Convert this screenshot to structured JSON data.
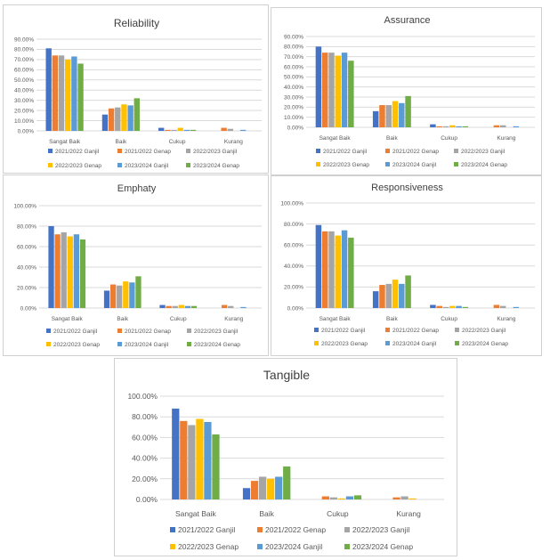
{
  "chart_data": [
    {
      "type": "bar",
      "title": "Reliability",
      "categories": [
        "Sangat Baik",
        "Baik",
        "Cukup",
        "Kurang"
      ],
      "ylim": [
        0,
        90
      ],
      "yticks": [
        "0.00%",
        "10.00%",
        "20.00%",
        "30.00%",
        "40.00%",
        "50.00%",
        "60.00%",
        "70.00%",
        "80.00%",
        "90.00%"
      ],
      "grid": true,
      "legend_position": "bottom",
      "series": [
        {
          "name": "2021/2022 Ganjil",
          "color": "#4472c4",
          "values": [
            81,
            16,
            3,
            0
          ]
        },
        {
          "name": "2021/2022 Genap",
          "color": "#ed7d31",
          "values": [
            74,
            22,
            1,
            3
          ]
        },
        {
          "name": "2022/2023 Ganjil",
          "color": "#a5a5a5",
          "values": [
            74,
            23,
            1,
            2
          ]
        },
        {
          "name": "2022/2023 Genap",
          "color": "#ffc000",
          "values": [
            70,
            26,
            3,
            0
          ]
        },
        {
          "name": "2023/2024 Ganjil",
          "color": "#5b9bd5",
          "values": [
            73,
            25,
            1,
            1
          ]
        },
        {
          "name": "2023/2024 Genap",
          "color": "#70ad47",
          "values": [
            66,
            32,
            1,
            0
          ]
        }
      ]
    },
    {
      "type": "bar",
      "title": "Assurance",
      "categories": [
        "Sangat Baik",
        "Baik",
        "Cukup",
        "Kurang"
      ],
      "ylim": [
        0,
        90
      ],
      "yticks": [
        "0.00%",
        "10.00%",
        "20.00%",
        "30.00%",
        "40.00%",
        "50.00%",
        "60.00%",
        "70.00%",
        "80.00%",
        "90.00%"
      ],
      "grid": true,
      "legend_position": "bottom",
      "series": [
        {
          "name": "2021/2022 Ganjil",
          "color": "#4472c4",
          "values": [
            80,
            16,
            3,
            0
          ]
        },
        {
          "name": "2021/2022 Genap",
          "color": "#ed7d31",
          "values": [
            74,
            22,
            1,
            2
          ]
        },
        {
          "name": "2022/2023 Ganjil",
          "color": "#a5a5a5",
          "values": [
            74,
            22,
            1,
            2
          ]
        },
        {
          "name": "2022/2023 Genap",
          "color": "#ffc000",
          "values": [
            71,
            26,
            2,
            0
          ]
        },
        {
          "name": "2023/2024 Ganjil",
          "color": "#5b9bd5",
          "values": [
            74,
            24,
            1,
            1
          ]
        },
        {
          "name": "2023/2024 Genap",
          "color": "#70ad47",
          "values": [
            66,
            31,
            1,
            0
          ]
        }
      ]
    },
    {
      "type": "bar",
      "title": "Emphaty",
      "categories": [
        "Sangat Baik",
        "Baik",
        "Cukup",
        "Kurang"
      ],
      "ylim": [
        0,
        100
      ],
      "yticks": [
        "0.00%",
        "20.00%",
        "40.00%",
        "60.00%",
        "80.00%",
        "100.00%"
      ],
      "grid": true,
      "legend_position": "bottom",
      "series": [
        {
          "name": "2021/2022 Ganjil",
          "color": "#4472c4",
          "values": [
            80,
            17,
            3,
            0
          ]
        },
        {
          "name": "2021/2022 Genap",
          "color": "#ed7d31",
          "values": [
            72,
            23,
            2,
            3
          ]
        },
        {
          "name": "2022/2023 Ganjil",
          "color": "#a5a5a5",
          "values": [
            74,
            22,
            2,
            2
          ]
        },
        {
          "name": "2022/2023 Genap",
          "color": "#ffc000",
          "values": [
            70,
            26,
            3,
            0
          ]
        },
        {
          "name": "2023/2024 Ganjil",
          "color": "#5b9bd5",
          "values": [
            72,
            25,
            2,
            1
          ]
        },
        {
          "name": "2023/2024 Genap",
          "color": "#70ad47",
          "values": [
            67,
            31,
            2,
            0
          ]
        }
      ]
    },
    {
      "type": "bar",
      "title": "Responsiveness",
      "categories": [
        "Sangat Baik",
        "Baik",
        "Cukup",
        "Kurang"
      ],
      "ylim": [
        0,
        100
      ],
      "yticks": [
        "0.00%",
        "20.00%",
        "40.00%",
        "60.00%",
        "80.00%",
        "100.00%"
      ],
      "grid": true,
      "legend_position": "bottom",
      "series": [
        {
          "name": "2021/2022 Ganjil",
          "color": "#4472c4",
          "values": [
            79,
            16,
            3,
            0
          ]
        },
        {
          "name": "2021/2022 Genap",
          "color": "#ed7d31",
          "values": [
            73,
            22,
            2,
            3
          ]
        },
        {
          "name": "2022/2023 Ganjil",
          "color": "#a5a5a5",
          "values": [
            73,
            23,
            1,
            2
          ]
        },
        {
          "name": "2022/2023 Genap",
          "color": "#ffc000",
          "values": [
            69,
            27,
            2,
            0
          ]
        },
        {
          "name": "2023/2024 Ganjil",
          "color": "#5b9bd5",
          "values": [
            74,
            23,
            2,
            1
          ]
        },
        {
          "name": "2023/2024 Genap",
          "color": "#70ad47",
          "values": [
            67,
            31,
            1,
            0
          ]
        }
      ]
    },
    {
      "type": "bar",
      "title": "Tangible",
      "categories": [
        "Sangat Baik",
        "Baik",
        "Cukup",
        "Kurang"
      ],
      "ylim": [
        0,
        100
      ],
      "yticks": [
        "0.00%",
        "20.00%",
        "40.00%",
        "60.00%",
        "80.00%",
        "100.00%"
      ],
      "grid": true,
      "legend_position": "bottom",
      "series": [
        {
          "name": "2021/2022 Ganjil",
          "color": "#4472c4",
          "values": [
            88,
            11,
            0,
            0
          ]
        },
        {
          "name": "2021/2022 Genap",
          "color": "#ed7d31",
          "values": [
            76,
            18,
            3,
            2
          ]
        },
        {
          "name": "2022/2023 Ganjil",
          "color": "#a5a5a5",
          "values": [
            72,
            22,
            2,
            3
          ]
        },
        {
          "name": "2022/2023 Genap",
          "color": "#ffc000",
          "values": [
            78,
            20,
            1,
            1
          ]
        },
        {
          "name": "2023/2024 Ganjil",
          "color": "#5b9bd5",
          "values": [
            75,
            22,
            3,
            0
          ]
        },
        {
          "name": "2023/2024 Genap",
          "color": "#70ad47",
          "values": [
            63,
            32,
            4,
            0
          ]
        }
      ]
    }
  ]
}
